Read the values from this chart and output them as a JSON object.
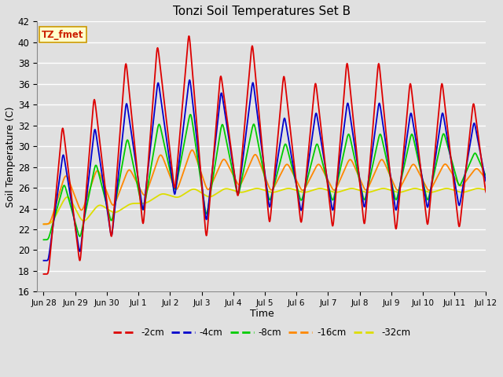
{
  "title": "Tonzi Soil Temperatures Set B",
  "xlabel": "Time",
  "ylabel": "Soil Temperature (C)",
  "ylim": [
    16,
    42
  ],
  "yticks": [
    16,
    18,
    20,
    22,
    24,
    26,
    28,
    30,
    32,
    34,
    36,
    38,
    40,
    42
  ],
  "background_color": "#e0e0e0",
  "plot_bg_color": "#e0e0e0",
  "annotation_text": "TZ_fmet",
  "annotation_color": "#cc2200",
  "annotation_bg": "#ffffcc",
  "annotation_border": "#cc9900",
  "legend_entries": [
    "-2cm",
    "-4cm",
    "-8cm",
    "-16cm",
    "-32cm"
  ],
  "line_colors": [
    "#dd0000",
    "#0000cc",
    "#00cc00",
    "#ff8800",
    "#dddd00"
  ],
  "grid_color": "#ffffff",
  "tick_labels": [
    "Jun 28",
    "Jun 29",
    "Jun 30",
    "Jul 1",
    "Jul 2",
    "Jul 3",
    "Jul 4",
    "Jul 5",
    "Jul 6",
    "Jul 7",
    "Jul 8",
    "Jul 9",
    "Jul 10",
    "Jul 11",
    "Jul 12"
  ]
}
